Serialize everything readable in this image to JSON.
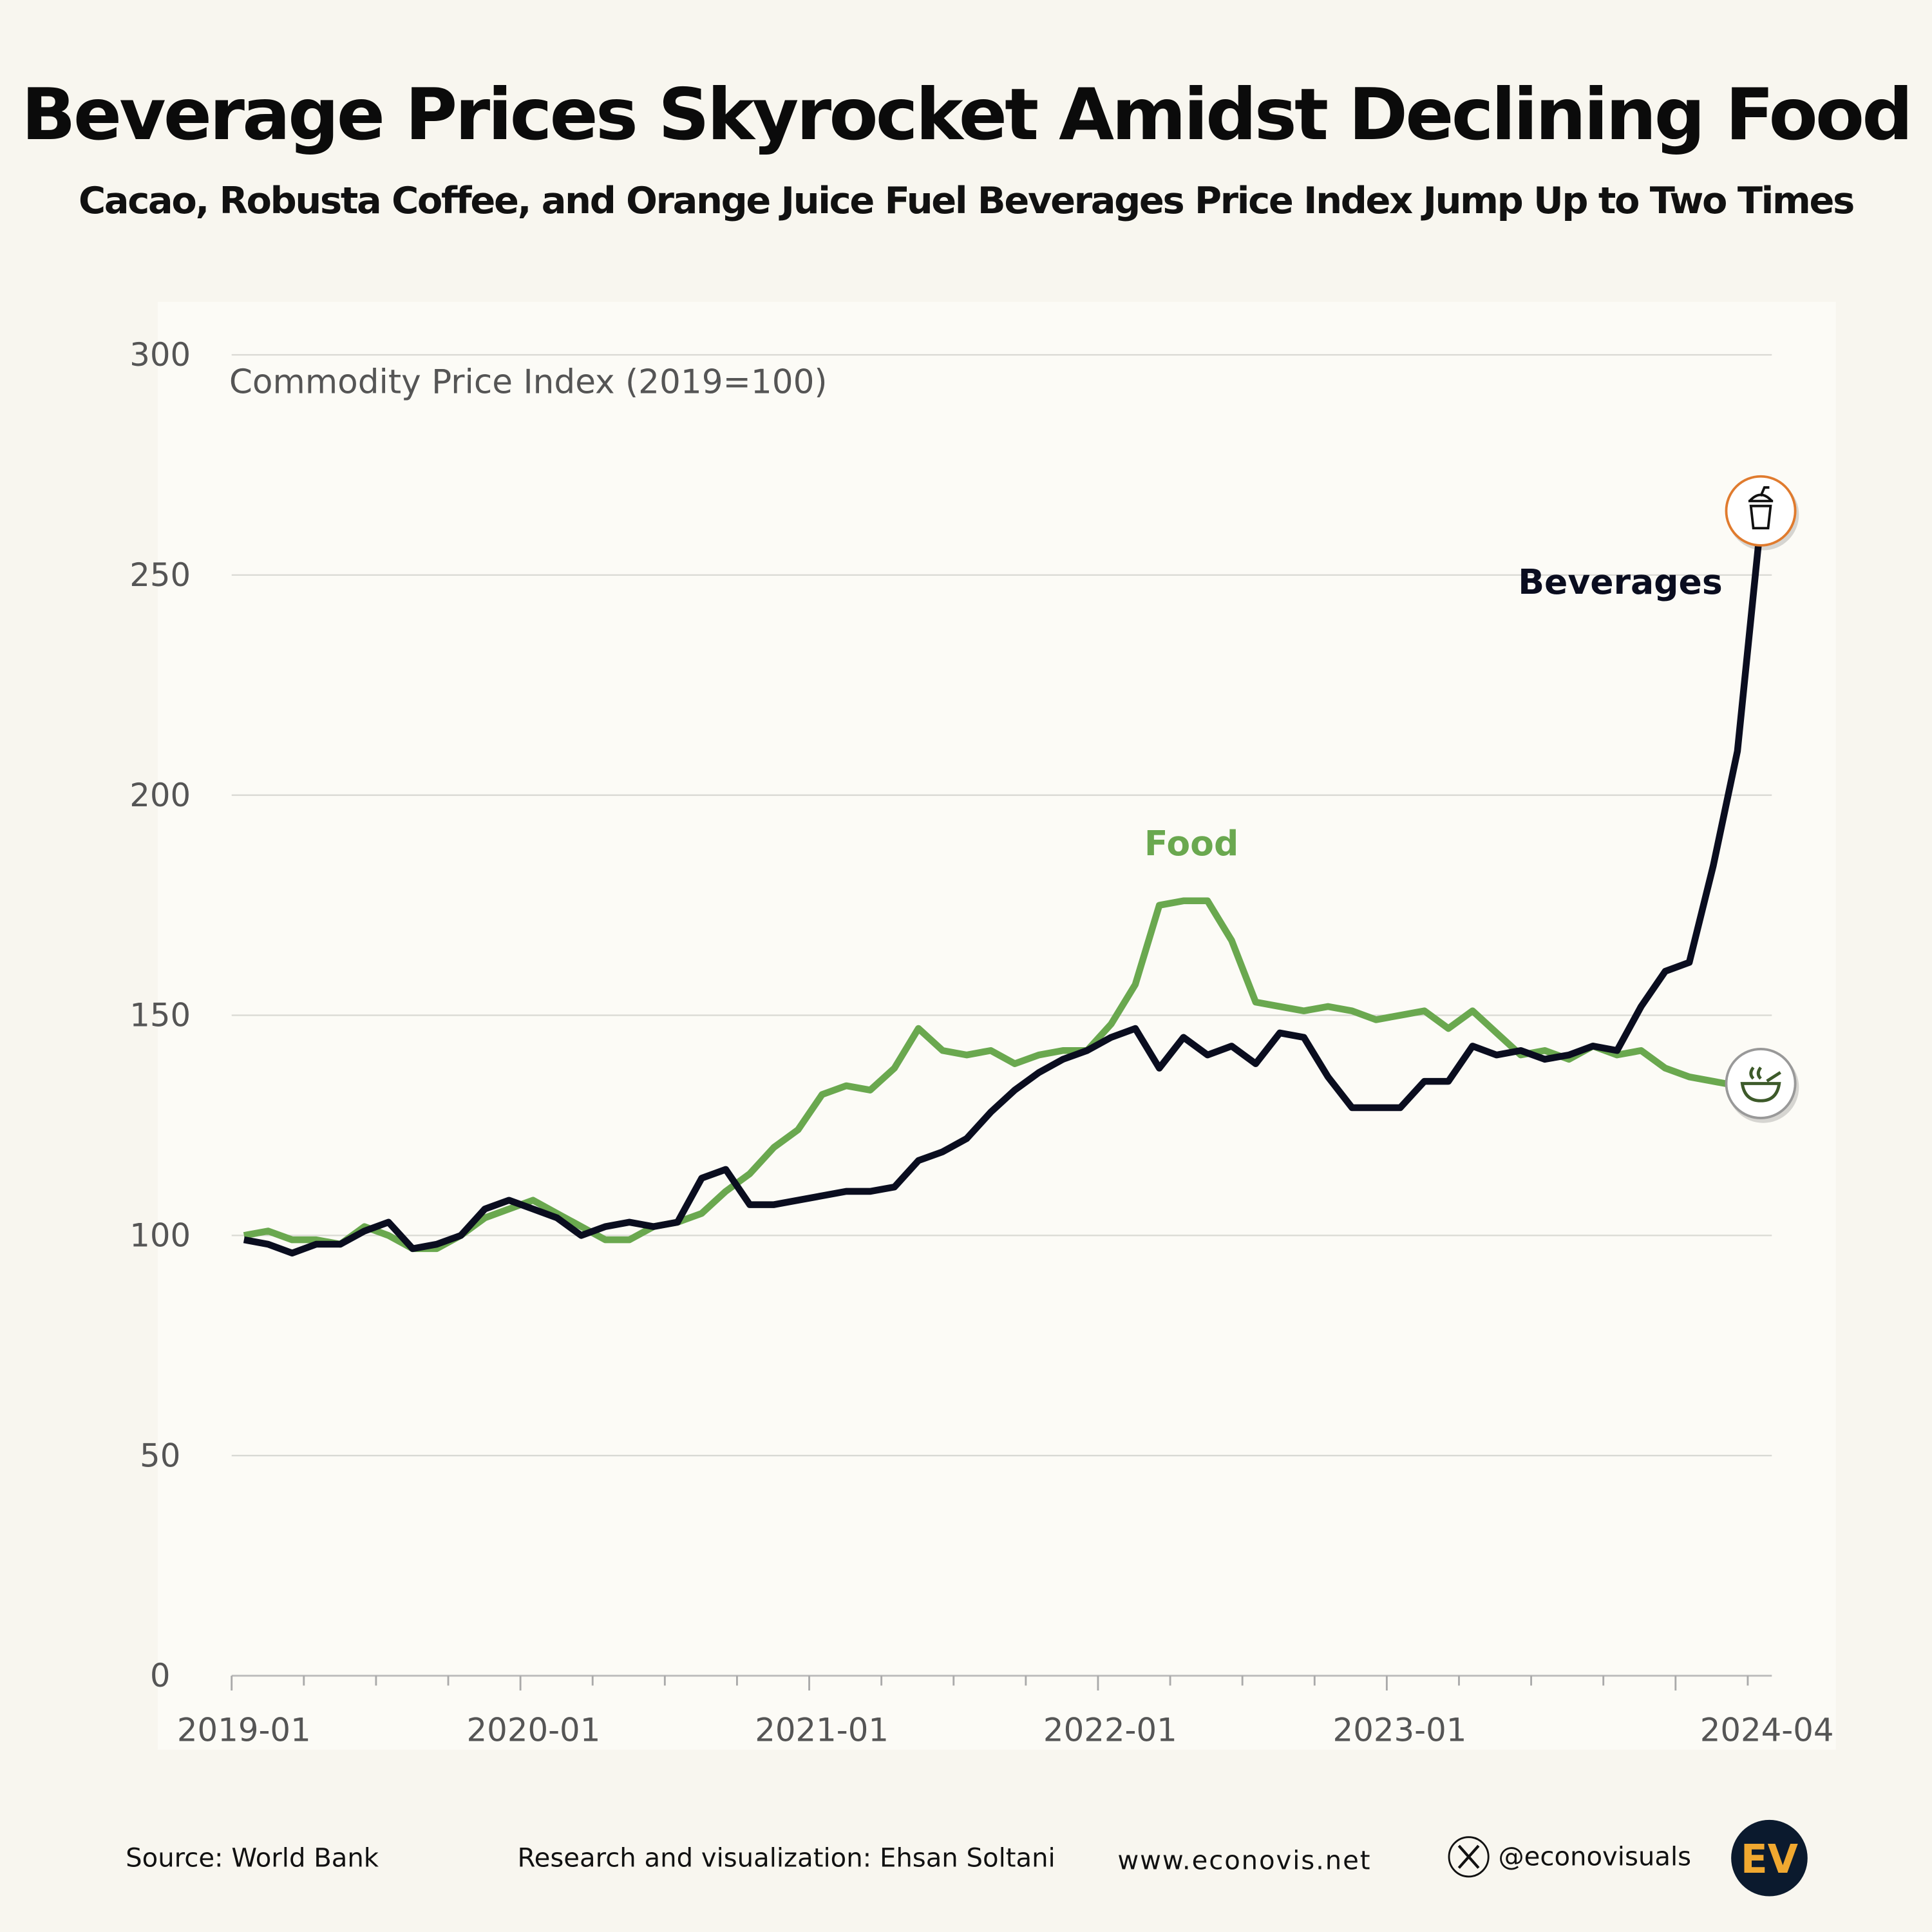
{
  "title": "Beverage Prices Skyrocket Amidst Declining Food",
  "subtitle": "Cacao, Robusta Coffee, and Orange Juice Fuel Beverages Price Index Jump Up to Two Times",
  "footer": {
    "source": "Source: World Bank",
    "credit": "Research and visualization: Ehsan Soltani",
    "website": "www.econovis.net",
    "handle": "@econovisuals",
    "logo": "EV",
    "x_icon": "x-logo-icon"
  },
  "chart_data": {
    "type": "line",
    "ylabel": "Commodity Price Index (2019=100)",
    "ylim": [
      0,
      300
    ],
    "yticks": [
      0,
      50,
      100,
      150,
      200,
      250,
      300
    ],
    "x_start": "2019-01",
    "x_end": "2024-04",
    "xtick_labels": [
      "2019-01",
      "2020-01",
      "2021-01",
      "2022-01",
      "2023-01",
      "2024-04"
    ],
    "grid": true,
    "series": [
      {
        "name": "Beverages",
        "color": "#0a0d1f",
        "icon": "drink-cup-icon",
        "icon_ring": "#e07b2e",
        "values": [
          99,
          98,
          96,
          98,
          98,
          101,
          103,
          97,
          98,
          100,
          106,
          108,
          106,
          104,
          100,
          102,
          103,
          102,
          103,
          113,
          115,
          107,
          107,
          108,
          109,
          110,
          110,
          111,
          117,
          119,
          122,
          128,
          133,
          137,
          140,
          142,
          145,
          147,
          138,
          145,
          141,
          143,
          139,
          146,
          145,
          136,
          129,
          129,
          129,
          135,
          135,
          143,
          141,
          142,
          140,
          141,
          143,
          142,
          152,
          160,
          162,
          184,
          210,
          264
        ]
      },
      {
        "name": "Food",
        "color": "#6aa84f",
        "icon": "soup-bowl-icon",
        "icon_ring": "#999999",
        "values": [
          100,
          101,
          99,
          99,
          98,
          102,
          100,
          97,
          97,
          100,
          104,
          106,
          108,
          105,
          102,
          99,
          99,
          102,
          103,
          105,
          110,
          114,
          120,
          124,
          132,
          134,
          133,
          138,
          147,
          142,
          141,
          142,
          139,
          141,
          142,
          142,
          148,
          157,
          175,
          176,
          176,
          167,
          153,
          152,
          151,
          152,
          151,
          149,
          150,
          151,
          147,
          151,
          146,
          141,
          142,
          140,
          143,
          141,
          142,
          138,
          136,
          135,
          134,
          134.5
        ]
      }
    ]
  }
}
